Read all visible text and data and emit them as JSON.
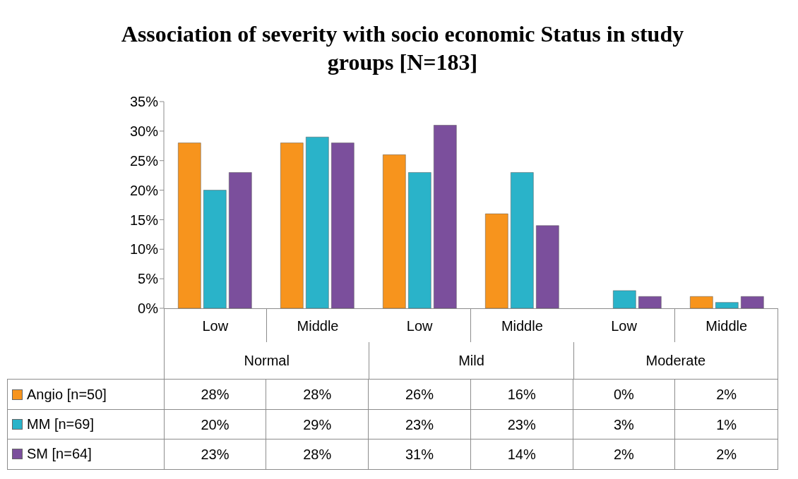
{
  "chart_data": {
    "type": "bar",
    "title": "Association of severity with socio economic Status in study groups [N=183]",
    "categories": [
      "Low",
      "Middle",
      "Low",
      "Middle",
      "Low",
      "Middle"
    ],
    "annotations": [
      "Normal",
      "Mild",
      "Moderate"
    ],
    "series": [
      {
        "name": "Angio [n=50]",
        "color": "#f7941d",
        "values": [
          28,
          28,
          26,
          16,
          0,
          2
        ],
        "value_labels": [
          "28%",
          "28%",
          "26%",
          "16%",
          "0%",
          "2%"
        ]
      },
      {
        "name": "MM [n=69]",
        "color": "#2ab3c9",
        "values": [
          20,
          29,
          23,
          23,
          3,
          1
        ],
        "value_labels": [
          "20%",
          "29%",
          "23%",
          "23%",
          "3%",
          "1%"
        ]
      },
      {
        "name": "SM [n=64]",
        "color": "#7b4f9c",
        "values": [
          23,
          28,
          31,
          14,
          2,
          2
        ],
        "value_labels": [
          "23%",
          "28%",
          "31%",
          "14%",
          "2%",
          "2%"
        ]
      }
    ],
    "ylim": [
      0,
      35
    ],
    "yticks": [
      {
        "value": 0,
        "label": "0%"
      },
      {
        "value": 5,
        "label": "5%"
      },
      {
        "value": 10,
        "label": "10%"
      },
      {
        "value": 15,
        "label": "15%"
      },
      {
        "value": 20,
        "label": "20%"
      },
      {
        "value": 25,
        "label": "25%"
      },
      {
        "value": 30,
        "label": "30%"
      },
      {
        "value": 35,
        "label": "35%"
      }
    ],
    "legend": "bottom left"
  }
}
